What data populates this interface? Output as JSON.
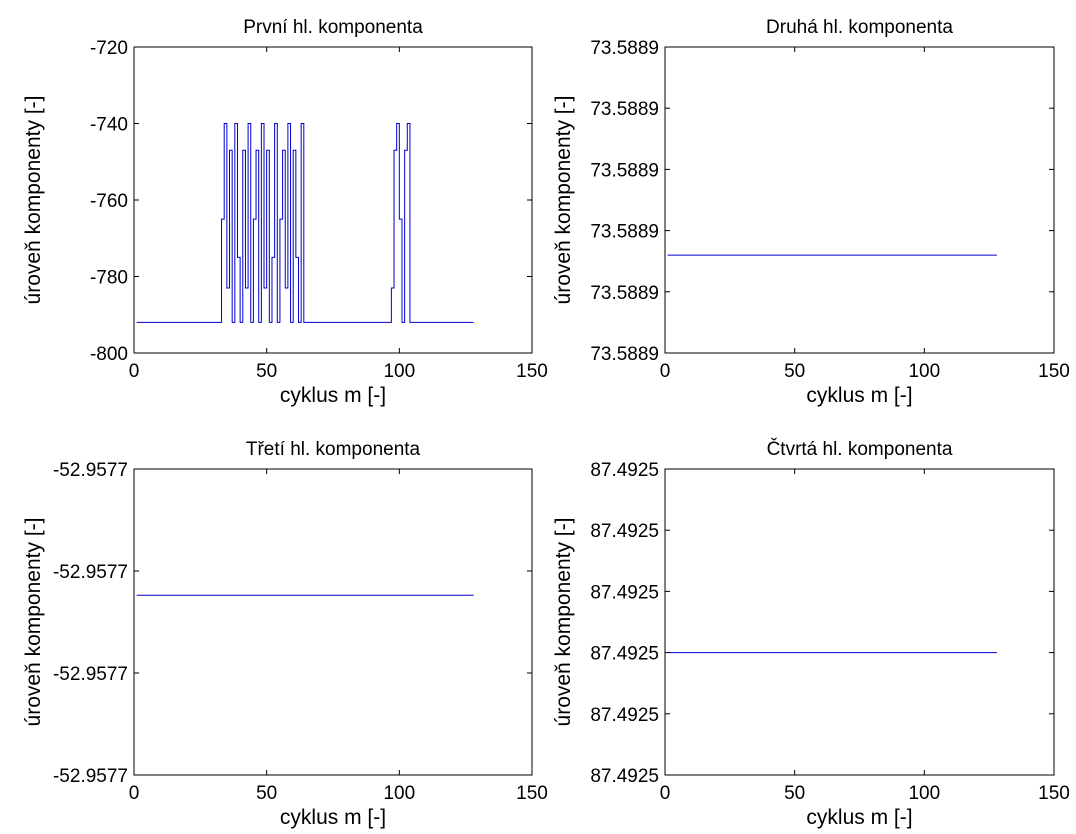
{
  "chart_data": [
    {
      "type": "line",
      "title": "První hl. komponenta",
      "xlabel": "cyklus m [-]",
      "ylabel": "úroveň komponenty [-]",
      "xlim": [
        0,
        150
      ],
      "ylim": [
        -800,
        -720
      ],
      "xticks": [
        "0",
        "50",
        "100",
        "150"
      ],
      "yticks": [
        "-720",
        "-740",
        "-760",
        "-780",
        "-800"
      ],
      "grid": false,
      "series": [
        {
          "color": "#0000cc",
          "x": [
            1,
            32,
            33,
            33,
            34,
            34,
            35,
            35,
            36,
            36,
            37,
            37,
            38,
            38,
            39,
            39,
            40,
            40,
            41,
            41,
            42,
            42,
            43,
            43,
            44,
            44,
            45,
            45,
            46,
            46,
            47,
            47,
            48,
            48,
            49,
            49,
            50,
            50,
            51,
            51,
            52,
            52,
            53,
            53,
            54,
            54,
            55,
            55,
            56,
            56,
            57,
            57,
            58,
            58,
            59,
            59,
            60,
            60,
            61,
            61,
            62,
            62,
            63,
            63,
            64,
            64,
            65,
            96,
            97,
            97,
            98,
            98,
            99,
            99,
            100,
            100,
            101,
            101,
            102,
            102,
            103,
            103,
            104,
            104,
            128
          ],
          "y": [
            -792,
            -792,
            -792,
            -765,
            -765,
            -740,
            -740,
            -783,
            -783,
            -747,
            -747,
            -792,
            -792,
            -740,
            -740,
            -775,
            -775,
            -792,
            -792,
            -747,
            -747,
            -783,
            -783,
            -740,
            -740,
            -792,
            -792,
            -765,
            -765,
            -747,
            -747,
            -792,
            -792,
            -740,
            -740,
            -783,
            -783,
            -747,
            -747,
            -792,
            -792,
            -775,
            -775,
            -740,
            -740,
            -792,
            -792,
            -765,
            -765,
            -747,
            -747,
            -783,
            -783,
            -740,
            -740,
            -792,
            -792,
            -747,
            -747,
            -775,
            -775,
            -792,
            -792,
            -740,
            -740,
            -792,
            -792,
            -792,
            -792,
            -783,
            -783,
            -747,
            -747,
            -740,
            -740,
            -765,
            -765,
            -792,
            -792,
            -747,
            -747,
            -740,
            -740,
            -792,
            -792
          ]
        }
      ]
    },
    {
      "type": "line",
      "title": "Druhá hl. komponenta",
      "xlabel": "cyklus m [-]",
      "ylabel": "úroveň komponenty [-]",
      "xlim": [
        0,
        150
      ],
      "ylim": [
        0,
        5
      ],
      "xticks": [
        "0",
        "50",
        "100",
        "150"
      ],
      "yticks": [
        "73.5889",
        "73.5889",
        "73.5889",
        "73.5889",
        "73.5889",
        "73.5889"
      ],
      "grid": false,
      "series": [
        {
          "color": "#0000cc",
          "x": [
            1,
            128
          ],
          "y": [
            1.6,
            1.6
          ]
        }
      ]
    },
    {
      "type": "line",
      "title": "Třetí hl. komponenta",
      "xlabel": "cyklus m [-]",
      "ylabel": "úroveň komponenty [-]",
      "xlim": [
        0,
        150
      ],
      "ylim": [
        0,
        4
      ],
      "xticks": [
        "0",
        "50",
        "100",
        "150"
      ],
      "yticks": [
        "-52.9577",
        "-52.9577",
        "-52.9577",
        "-52.9577"
      ],
      "grid": false,
      "series": [
        {
          "color": "#0000cc",
          "x": [
            1,
            128
          ],
          "y": [
            2.35,
            2.35
          ]
        }
      ]
    },
    {
      "type": "line",
      "title": "Čtvrtá hl. komponenta",
      "xlabel": "cyklus m [-]",
      "ylabel": "úroveň komponenty [-]",
      "xlim": [
        0,
        150
      ],
      "ylim": [
        0,
        5
      ],
      "xticks": [
        "0",
        "50",
        "100",
        "150"
      ],
      "yticks": [
        "87.4925",
        "87.4925",
        "87.4925",
        "87.4925",
        "87.4925",
        "87.4925"
      ],
      "grid": false,
      "series": [
        {
          "color": "#0000cc",
          "x": [
            1,
            128
          ],
          "y": [
            2.0,
            2.0
          ]
        }
      ]
    }
  ]
}
